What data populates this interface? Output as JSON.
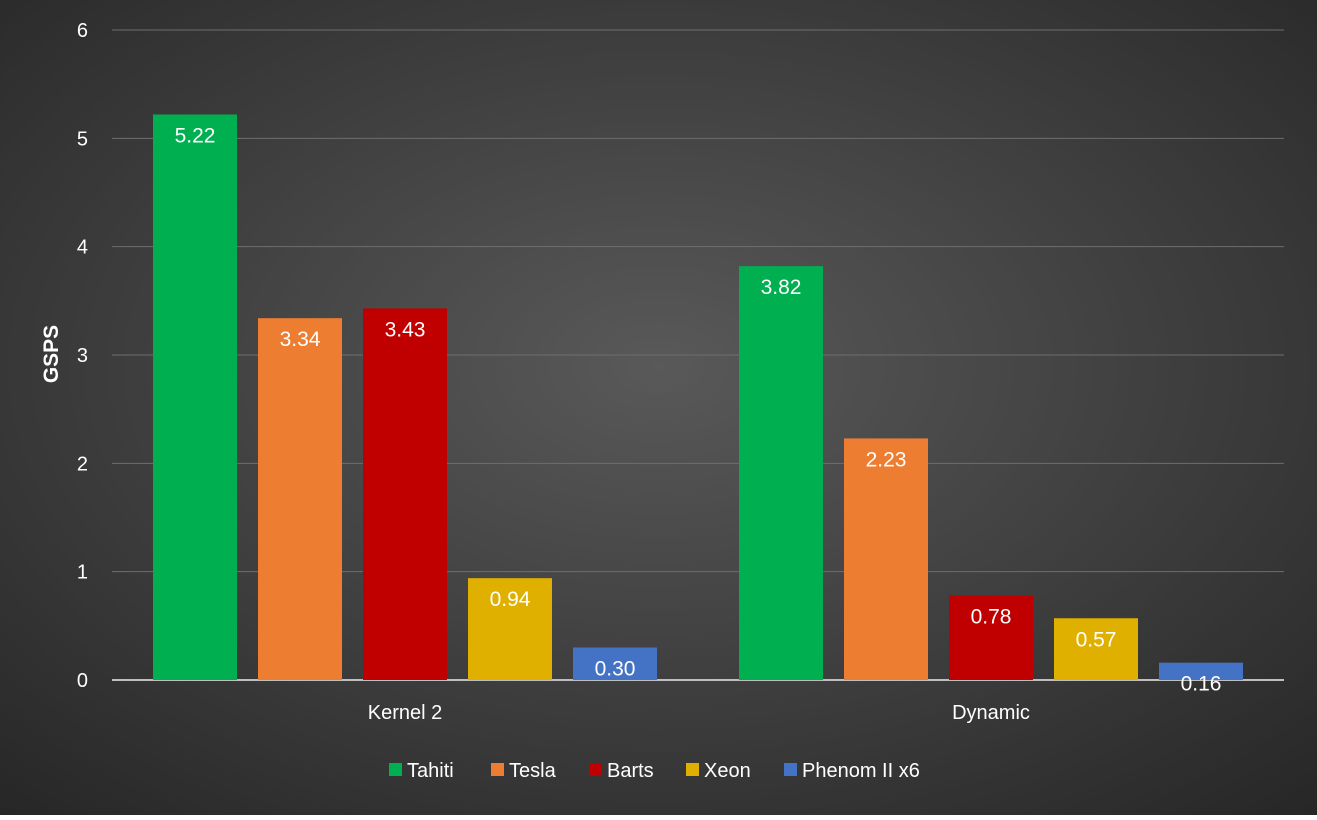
{
  "chart_data": {
    "type": "bar",
    "title": "",
    "xlabel": "",
    "ylabel": "GSPS",
    "ylim": [
      0,
      6
    ],
    "yticks": [
      "0",
      "1",
      "2",
      "3",
      "4",
      "5",
      "6"
    ],
    "grid": true,
    "legend_position": "bottom",
    "categories": [
      "Kernel 2",
      "Dynamic"
    ],
    "series": [
      {
        "name": "Tahiti",
        "color": "#00b050",
        "values": [
          5.22,
          3.82
        ],
        "labels": [
          "5.22",
          "3.82"
        ]
      },
      {
        "name": "Tesla",
        "color": "#ed7d31",
        "values": [
          3.34,
          2.23
        ],
        "labels": [
          "3.34",
          "2.23"
        ]
      },
      {
        "name": "Barts",
        "color": "#c00000",
        "values": [
          3.43,
          0.78
        ],
        "labels": [
          "3.43",
          "0.78"
        ]
      },
      {
        "name": "Xeon",
        "color": "#e0b000",
        "values": [
          0.94,
          0.57
        ],
        "labels": [
          "0.94",
          "0.57"
        ]
      },
      {
        "name": "Phenom II x6",
        "color": "#4472c4",
        "values": [
          0.3,
          0.16
        ],
        "labels": [
          "0.30",
          "0.16"
        ]
      }
    ]
  }
}
